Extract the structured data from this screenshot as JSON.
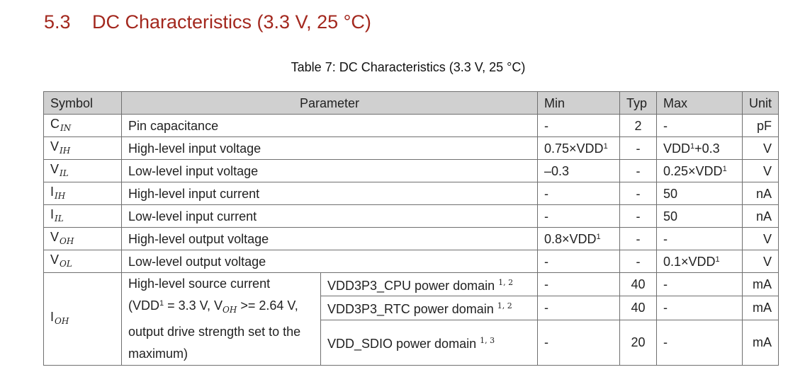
{
  "section": {
    "number": "5.3",
    "title": "DC Characteristics (3.3 V, 25 °C)"
  },
  "caption": "Table 7: DC Characteristics (3.3 V, 25 °C)",
  "headers": {
    "symbol": "Symbol",
    "parameter": "Parameter",
    "min": "Min",
    "typ": "Typ",
    "max": "Max",
    "unit": "Unit"
  },
  "rows": [
    {
      "sym": "C",
      "sub": "IN",
      "param": "Pin capacitance",
      "min": "-",
      "min_sup": "",
      "typ": "2",
      "max": "-",
      "max_main": "",
      "max_sup": "",
      "max_tail": "",
      "unit": "pF"
    },
    {
      "sym": "V",
      "sub": "IH",
      "param": "High-level input voltage",
      "min": "0.75×VDD",
      "min_sup": "1",
      "typ": "-",
      "max_main": "VDD",
      "max_sup": "1",
      "max_tail": "+0.3",
      "unit": "V"
    },
    {
      "sym": "V",
      "sub": "IL",
      "param": "Low-level input voltage",
      "min": "–0.3",
      "min_sup": "",
      "typ": "-",
      "max_main": "0.25×VDD",
      "max_sup": "1",
      "max_tail": "",
      "unit": "V"
    },
    {
      "sym": "I",
      "sub": "IH",
      "param": "High-level input current",
      "min": "-",
      "min_sup": "",
      "typ": "-",
      "max_main": "50",
      "max_sup": "",
      "max_tail": "",
      "unit": "nA"
    },
    {
      "sym": "I",
      "sub": "IL",
      "param": "Low-level input current",
      "min": "-",
      "min_sup": "",
      "typ": "-",
      "max_main": "50",
      "max_sup": "",
      "max_tail": "",
      "unit": "nA"
    },
    {
      "sym": "V",
      "sub": "OH",
      "param": "High-level output voltage",
      "min": "0.8×VDD",
      "min_sup": "1",
      "typ": "-",
      "max_main": "-",
      "max_sup": "",
      "max_tail": "",
      "unit": "V"
    },
    {
      "sym": "V",
      "sub": "OL",
      "param": "Low-level output voltage",
      "min": "-",
      "min_sup": "",
      "typ": "-",
      "max_main": "0.1×VDD",
      "max_sup": "1",
      "max_tail": "",
      "unit": "V"
    }
  ],
  "ioh": {
    "sym": "I",
    "sub": "OH",
    "param_line1": "High-level source current",
    "param_line2a": "(VDD",
    "param_line2_sup": "1",
    "param_line2b": " = 3.3 V, V",
    "param_line2_sub": "OH",
    "param_line2c": " >= 2.64 V,",
    "param_line3": "output drive strength set to the",
    "param_line4": "maximum)",
    "domains": [
      {
        "name": "VDD3P3_CPU power domain",
        "notes": "1, 2",
        "min": "-",
        "typ": "40",
        "max": "-",
        "unit": "mA"
      },
      {
        "name": "VDD3P3_RTC power domain",
        "notes": "1, 2",
        "min": "-",
        "typ": "40",
        "max": "-",
        "unit": "mA"
      },
      {
        "name": "VDD_SDIO power domain",
        "notes": "1, 3",
        "min": "-",
        "typ": "20",
        "max": "-",
        "unit": "mA"
      }
    ]
  }
}
